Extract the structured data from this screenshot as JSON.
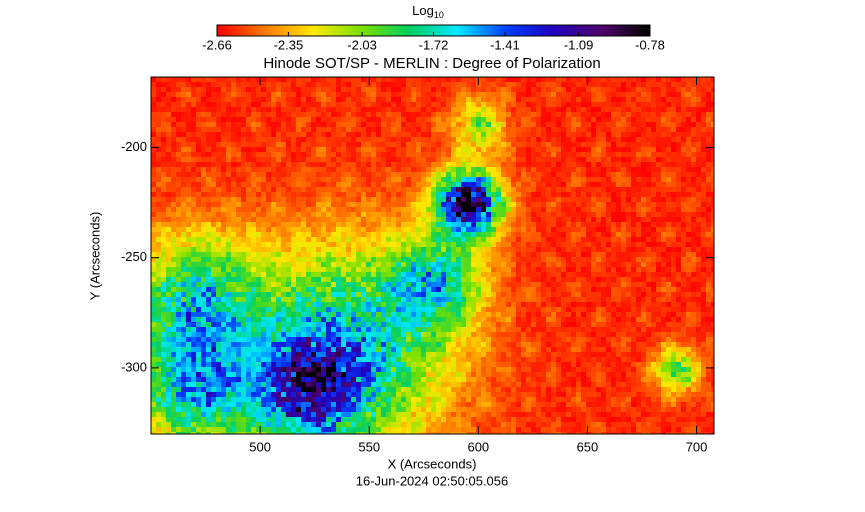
{
  "chart_data": {
    "type": "image",
    "title": "Hinode SOT/SP - MERLIN : Degree of Polarization",
    "x_label": "X (Arcseconds)",
    "y_label": "Y (Arcseconds)",
    "footer": "16-Jun-2024 02:50:05.056",
    "xlim": [
      450,
      708
    ],
    "ylim": [
      -330,
      -168
    ],
    "xticks": [
      500,
      550,
      600,
      650,
      700
    ],
    "yticks": [
      -200,
      -250,
      -300
    ],
    "colorbar": {
      "label": "Log",
      "label_sub": "10",
      "clim": [
        -2.66,
        -0.78
      ],
      "ticks": [
        -2.66,
        -2.35,
        -2.03,
        -1.72,
        -1.41,
        -1.09,
        -0.78
      ],
      "colormap": [
        "#ff0000",
        "#ff7a00",
        "#ffe800",
        "#7ce000",
        "#00d060",
        "#00e8ff",
        "#0040ff",
        "#2000c0",
        "#50006a",
        "#000000"
      ]
    }
  }
}
